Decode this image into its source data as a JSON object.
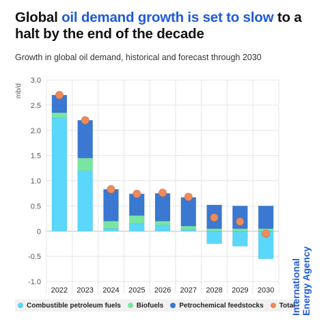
{
  "header": {
    "title_part1": "Global ",
    "title_highlight": "oil demand growth is set to slow",
    "title_part2": " to a halt by the end of the decade",
    "subtitle": "Growth in global oil demand, historical and forecast through 2030"
  },
  "brand": {
    "line1": "International",
    "line2": "Energy Agency"
  },
  "colors": {
    "combustible": "#5ad7fb",
    "biofuels": "#79e5a3",
    "petrochemical": "#3a78d1",
    "total": "#f08a5a",
    "accent": "#1f5ad6"
  },
  "chart_data": {
    "type": "bar",
    "stacked": true,
    "ylabel": "mb/d",
    "ylim": [
      -1.0,
      3.0
    ],
    "yticks": [
      "3.0",
      "2.5",
      "2.0",
      "1.5",
      "1.0",
      "0.5",
      "0",
      "-0.5",
      "-1.0"
    ],
    "grid": true,
    "legend_position": "bottom",
    "categories": [
      "2022",
      "2023",
      "2024",
      "2025",
      "2026",
      "2027",
      "2028",
      "2029",
      "2030"
    ],
    "series": [
      {
        "name": "Combustible petroleum fuels",
        "values": [
          2.25,
          1.2,
          0.05,
          0.15,
          0.12,
          0.04,
          -0.25,
          -0.3,
          -0.55
        ]
      },
      {
        "name": "Biofuels",
        "values": [
          0.1,
          0.25,
          0.15,
          0.16,
          0.08,
          0.06,
          0.05,
          0.05,
          0.05
        ]
      },
      {
        "name": "Petrochemical feedstocks",
        "values": [
          0.35,
          0.75,
          0.63,
          0.43,
          0.55,
          0.57,
          0.47,
          0.45,
          0.45
        ]
      }
    ],
    "total": {
      "name": "Total",
      "values": [
        2.7,
        2.2,
        0.83,
        0.74,
        0.76,
        0.68,
        0.27,
        0.19,
        -0.05
      ]
    }
  }
}
